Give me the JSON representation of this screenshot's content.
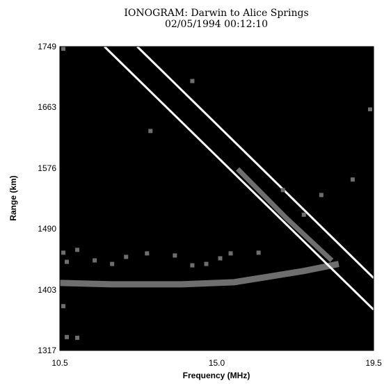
{
  "chart_data": {
    "type": "line",
    "title": "IONOGRAM: Darwin to Alice Springs",
    "subtitle": "02/05/1994   00:12:10",
    "x_label": "Frequency  (MHz)",
    "y_label": "Range  (km)",
    "xlim": [
      10.5,
      19.5
    ],
    "xticks": [
      10.5,
      {
        "value": 15,
        "label": "15.0"
      },
      19.5
    ],
    "ylim": [
      1317,
      1749
    ],
    "yticks": [
      1317,
      1403,
      1490,
      1576,
      1663,
      1749
    ],
    "background": "#000000",
    "series": [
      {
        "color": "#6e6e6e",
        "mode": "line",
        "width": 9,
        "x": [
          10.5,
          12,
          14,
          15.5,
          16.5,
          17.5,
          18.5
        ],
        "values": [
          1413,
          1411,
          1411,
          1414,
          1422,
          1430,
          1440
        ]
      },
      {
        "color": "#6e6e6e",
        "mode": "line",
        "width": 7,
        "x": [
          15.6,
          17.0,
          18.3
        ],
        "values": [
          1575,
          1505,
          1445
        ]
      },
      {
        "color": "#ffffff",
        "mode": "line",
        "width": 3,
        "x": [
          11.78,
          19.5
        ],
        "values": [
          1749,
          1375
        ]
      },
      {
        "color": "#ffffff",
        "mode": "line",
        "width": 3,
        "x": [
          12.72,
          19.5
        ],
        "values": [
          1749,
          1420
        ]
      },
      {
        "color": "#6e6e6e",
        "mode": "markers",
        "x": [
          10.6,
          10.7,
          10.6,
          11.0,
          11.5,
          12.0,
          12.4,
          13.0,
          13.8,
          14.3,
          14.7,
          15.1,
          15.4,
          16.2,
          17.5,
          18.0,
          18.9,
          19.4,
          13.1,
          14.3,
          16.9,
          10.6,
          10.7,
          11.0
        ],
        "values": [
          1746,
          1443,
          1456,
          1460,
          1445,
          1440,
          1450,
          1455,
          1452,
          1438,
          1440,
          1448,
          1455,
          1456,
          1510,
          1538,
          1560,
          1660,
          1629,
          1700,
          1545,
          1380,
          1336,
          1335
        ]
      }
    ]
  }
}
